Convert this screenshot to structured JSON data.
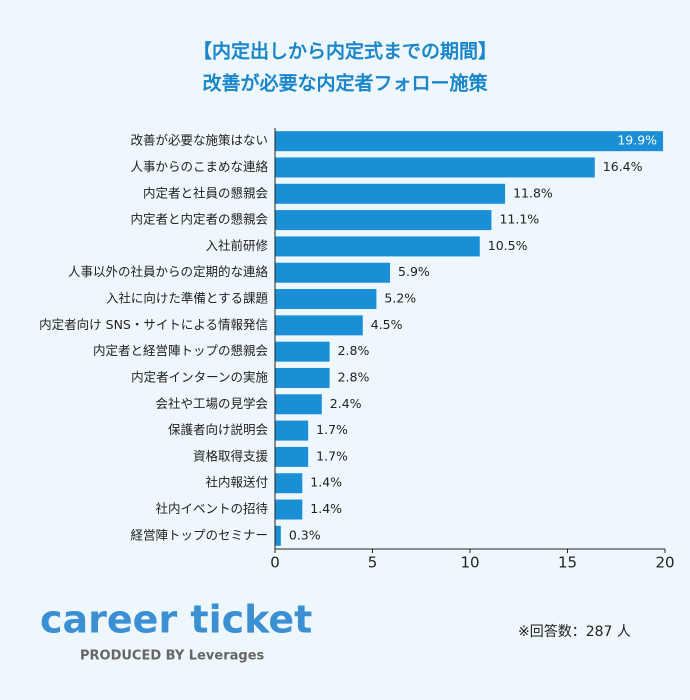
{
  "chart_data": {
    "type": "bar",
    "orientation": "horizontal",
    "title": "【内定出しから内定式までの期間】",
    "subtitle": "改善が必要な内定者フォロー施策",
    "categories": [
      "改善が必要な施策はない",
      "人事からのこまめな連絡",
      "内定者と社員の懇親会",
      "内定者と内定者の懇親会",
      "入社前研修",
      "人事以外の社員からの定期的な連絡",
      "入社に向けた準備とする課題",
      "内定者向け SNS・サイトによる情報発信",
      "内定者と経営陣トップの懇親会",
      "内定者インターンの実施",
      "会社や工場の見学会",
      "保護者向け説明会",
      "資格取得支援",
      "社内報送付",
      "社内イベントの招待",
      "経営陣トップのセミナー"
    ],
    "values": [
      19.9,
      16.4,
      11.8,
      11.1,
      10.5,
      5.9,
      5.2,
      4.5,
      2.8,
      2.8,
      2.4,
      1.7,
      1.7,
      1.4,
      1.4,
      0.3
    ],
    "value_labels": [
      "19.9%",
      "16.4%",
      "11.8%",
      "11.1%",
      "10.5%",
      "5.9%",
      "5.2%",
      "4.5%",
      "2.8%",
      "2.8%",
      "2.4%",
      "1.7%",
      "1.7%",
      "1.4%",
      "1.4%",
      "0.3%"
    ],
    "color": "#1a8fd6",
    "xlim": [
      0,
      20
    ],
    "xticks": [
      0,
      5,
      10,
      15,
      20
    ],
    "grid": false,
    "note": "※回答数：287 人",
    "logo": "career ticket",
    "logo_sub": "PRODUCED BY Leverages"
  }
}
